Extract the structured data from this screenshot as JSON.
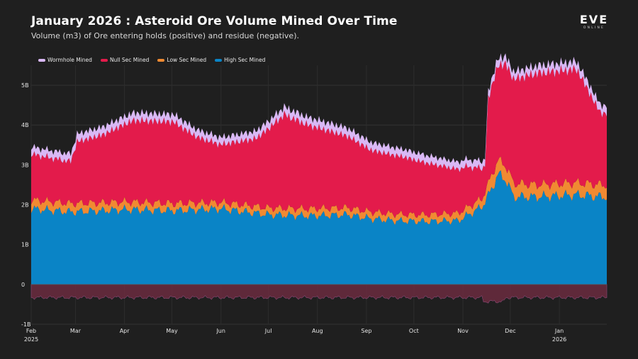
{
  "header": {
    "title": "January 2026 : Asteroid Ore Volume Mined Over Time",
    "subtitle": "Volume (m3) of Ore entering holds (positive) and residue (negative).",
    "logo_text": "EVE",
    "logo_subtext": "ONLINE"
  },
  "chart_data": {
    "type": "area",
    "title": "January 2026 : Asteroid Ore Volume Mined Over Time",
    "subtitle": "Volume (m3) of Ore entering holds (positive) and residue (negative).",
    "stacked": true,
    "y_unit": "B",
    "ylim": [
      -1,
      5.5
    ],
    "y_ticks": [
      {
        "value": 5,
        "label": "5B"
      },
      {
        "value": 4,
        "label": "4B"
      },
      {
        "value": 3,
        "label": "3B"
      },
      {
        "value": 2,
        "label": "2B"
      },
      {
        "value": 1,
        "label": "1B"
      },
      {
        "value": 0,
        "label": "0"
      },
      {
        "value": -1,
        "label": "-1B"
      }
    ],
    "x_ticks": [
      {
        "date": "2025-02-01",
        "label": "Feb",
        "sublabel": "2025"
      },
      {
        "date": "2025-03-01",
        "label": "Mar",
        "sublabel": ""
      },
      {
        "date": "2025-04-01",
        "label": "Apr",
        "sublabel": ""
      },
      {
        "date": "2025-05-01",
        "label": "May",
        "sublabel": ""
      },
      {
        "date": "2025-06-01",
        "label": "Jun",
        "sublabel": ""
      },
      {
        "date": "2025-07-01",
        "label": "Jul",
        "sublabel": ""
      },
      {
        "date": "2025-08-01",
        "label": "Aug",
        "sublabel": ""
      },
      {
        "date": "2025-09-01",
        "label": "Sep",
        "sublabel": ""
      },
      {
        "date": "2025-10-01",
        "label": "Oct",
        "sublabel": ""
      },
      {
        "date": "2025-11-01",
        "label": "Nov",
        "sublabel": ""
      },
      {
        "date": "2025-12-01",
        "label": "Dec",
        "sublabel": ""
      },
      {
        "date": "2026-01-01",
        "label": "Jan",
        "sublabel": "2026"
      }
    ],
    "x_start": "2025-02-01",
    "x_end": "2026-01-31",
    "legend_position": "top-left",
    "series": [
      {
        "name": "Wormhole Mined",
        "color": "#d9b8f5",
        "keys": [
          [
            0,
            0.18
          ],
          [
            40,
            0.2
          ],
          [
            120,
            0.18
          ],
          [
            200,
            0.2
          ],
          [
            290,
            0.18
          ],
          [
            360,
            0.2
          ]
        ]
      },
      {
        "name": "Null Sec Mined",
        "color": "#e31b4b",
        "keys": [
          [
            0,
            1.15
          ],
          [
            25,
            1.05
          ],
          [
            29,
            1.55
          ],
          [
            45,
            1.7
          ],
          [
            65,
            2.05
          ],
          [
            90,
            2.05
          ],
          [
            105,
            1.65
          ],
          [
            120,
            1.45
          ],
          [
            142,
            1.7
          ],
          [
            160,
            2.35
          ],
          [
            175,
            2.1
          ],
          [
            200,
            1.8
          ],
          [
            215,
            1.55
          ],
          [
            235,
            1.45
          ],
          [
            255,
            1.25
          ],
          [
            275,
            1.05
          ],
          [
            287,
            0.7
          ],
          [
            289,
            2.15
          ],
          [
            300,
            2.55
          ],
          [
            320,
            2.8
          ],
          [
            345,
            2.85
          ],
          [
            360,
            1.8
          ]
        ]
      },
      {
        "name": "Low Sec Mined",
        "color": "#f08a32",
        "keys": [
          [
            0,
            0.22
          ],
          [
            90,
            0.18
          ],
          [
            120,
            0.16
          ],
          [
            180,
            0.18
          ],
          [
            240,
            0.16
          ],
          [
            285,
            0.2
          ],
          [
            292,
            0.35
          ],
          [
            300,
            0.35
          ],
          [
            320,
            0.3
          ],
          [
            360,
            0.3
          ]
        ]
      },
      {
        "name": "High Sec Mined",
        "color": "#0a84c6",
        "keys": [
          [
            0,
            1.9
          ],
          [
            25,
            1.82
          ],
          [
            45,
            1.85
          ],
          [
            60,
            1.88
          ],
          [
            90,
            1.85
          ],
          [
            120,
            1.9
          ],
          [
            150,
            1.75
          ],
          [
            175,
            1.72
          ],
          [
            200,
            1.75
          ],
          [
            215,
            1.65
          ],
          [
            230,
            1.6
          ],
          [
            250,
            1.58
          ],
          [
            270,
            1.6
          ],
          [
            285,
            1.95
          ],
          [
            290,
            2.3
          ],
          [
            295,
            2.75
          ],
          [
            300,
            2.65
          ],
          [
            305,
            2.2
          ],
          [
            320,
            2.2
          ],
          [
            345,
            2.25
          ],
          [
            360,
            2.2
          ]
        ]
      }
    ],
    "residue": {
      "color": "#6b2b3f",
      "base_value": -0.33,
      "range": [
        -0.6,
        -0.2
      ]
    }
  }
}
